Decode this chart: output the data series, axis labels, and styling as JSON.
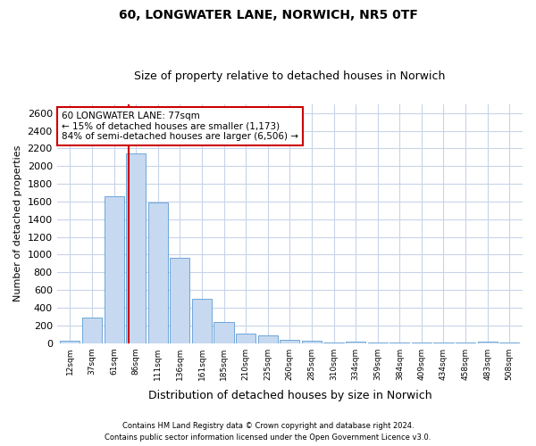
{
  "title1": "60, LONGWATER LANE, NORWICH, NR5 0TF",
  "title2": "Size of property relative to detached houses in Norwich",
  "xlabel": "Distribution of detached houses by size in Norwich",
  "ylabel": "Number of detached properties",
  "categories": [
    "12sqm",
    "37sqm",
    "61sqm",
    "86sqm",
    "111sqm",
    "136sqm",
    "161sqm",
    "185sqm",
    "210sqm",
    "235sqm",
    "260sqm",
    "285sqm",
    "310sqm",
    "334sqm",
    "359sqm",
    "384sqm",
    "409sqm",
    "434sqm",
    "458sqm",
    "483sqm",
    "508sqm"
  ],
  "values": [
    30,
    290,
    1660,
    2140,
    1590,
    960,
    500,
    240,
    110,
    90,
    35,
    30,
    5,
    20,
    5,
    5,
    10,
    5,
    5,
    15,
    5
  ],
  "bar_color": "#c6d9f0",
  "bar_edge_color": "#5b9bd5",
  "marker_label_line1": "60 LONGWATER LANE: 77sqm",
  "marker_label_line2": "← 15% of detached houses are smaller (1,173)",
  "marker_label_line3": "84% of semi-detached houses are larger (6,506) →",
  "red_line_color": "#cc0000",
  "annotation_box_edge": "#cc0000",
  "ylim": [
    0,
    2700
  ],
  "yticks": [
    0,
    200,
    400,
    600,
    800,
    1000,
    1200,
    1400,
    1600,
    1800,
    2000,
    2200,
    2400,
    2600
  ],
  "footer1": "Contains HM Land Registry data © Crown copyright and database right 2024.",
  "footer2": "Contains public sector information licensed under the Open Government Licence v3.0.",
  "bg_color": "#ffffff",
  "grid_color": "#c8d4e8",
  "title1_fontsize": 10,
  "title2_fontsize": 9,
  "bar_width": 0.9
}
